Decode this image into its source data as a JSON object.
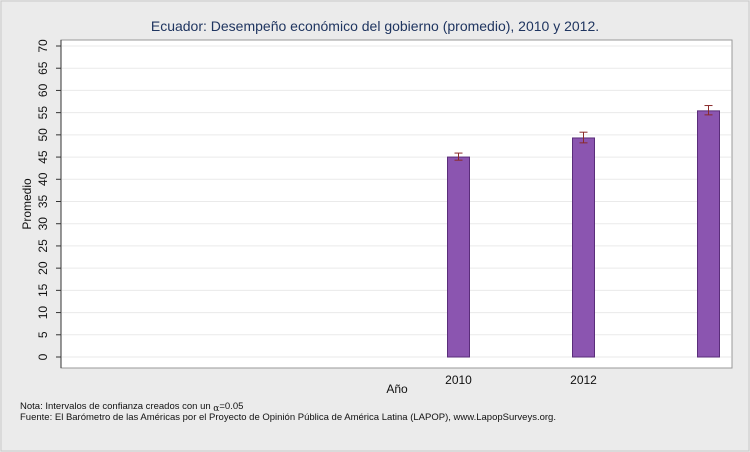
{
  "chart_data": {
    "type": "bar",
    "title": "Ecuador: Desempeño económico del gobierno (promedio), 2010 y 2012.",
    "xlabel": "Año",
    "ylabel": "Promedio",
    "ylim": [
      0,
      70
    ],
    "yticks": [
      0,
      5,
      10,
      15,
      20,
      25,
      30,
      35,
      40,
      45,
      50,
      55,
      60,
      65,
      70
    ],
    "grid": true,
    "categories": [
      "2010",
      "2012",
      ""
    ],
    "values": [
      45.0,
      49.3,
      55.4
    ],
    "ci_low": [
      44.3,
      48.2,
      54.5
    ],
    "ci_high": [
      45.9,
      50.6,
      56.6
    ],
    "bar_color": "#8b55b0",
    "bar_edge_color": "#5a2d7a",
    "error_color": "#8a2a2a"
  },
  "footer": {
    "note_prefix": "Nota: Intervalos de confianza creados con un ",
    "note_symbol": "α",
    "note_suffix": "=0.05",
    "source": "Fuente: El Barómetro de las Américas por el Proyecto de Opinión Pública de América Latina (LAPOP), www.LapopSurveys.org."
  }
}
